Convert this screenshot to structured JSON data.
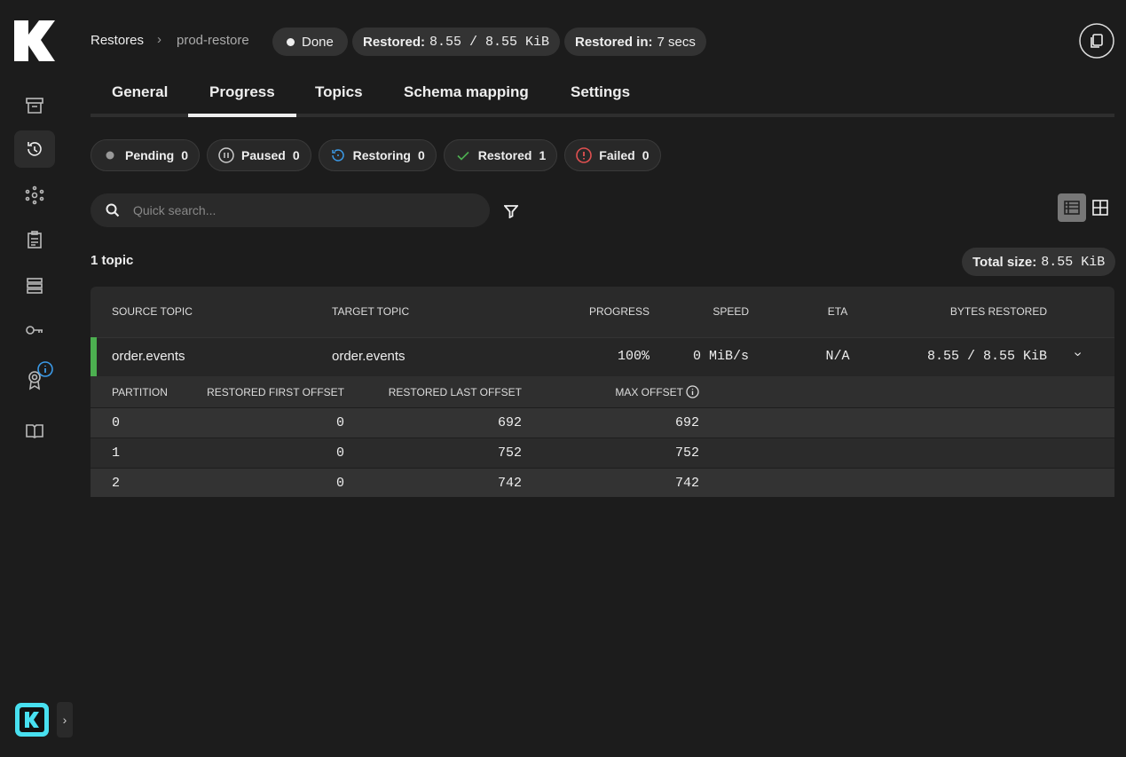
{
  "breadcrumb": {
    "parent": "Restores",
    "current": "prod-restore"
  },
  "status": {
    "state": "Done",
    "restored_label": "Restored:",
    "restored_value": "8.55 / 8.55 KiB",
    "time_label": "Restored in:",
    "time_value": "7 secs"
  },
  "tabs": [
    "General",
    "Progress",
    "Topics",
    "Schema mapping",
    "Settings"
  ],
  "active_tab": 1,
  "filters": [
    {
      "label": "Pending",
      "count": 0
    },
    {
      "label": "Paused",
      "count": 0
    },
    {
      "label": "Restoring",
      "count": 0
    },
    {
      "label": "Restored",
      "count": 1
    },
    {
      "label": "Failed",
      "count": 0
    }
  ],
  "search_placeholder": "Quick search...",
  "topic_count": "1 topic",
  "total_size": {
    "label": "Total size:",
    "value": "8.55 KiB"
  },
  "table": {
    "columns": [
      "SOURCE TOPIC",
      "TARGET TOPIC",
      "PROGRESS",
      "SPEED",
      "ETA",
      "BYTES RESTORED"
    ],
    "rows": [
      [
        "order.events",
        "order.events",
        "100%",
        "0 MiB/s",
        "N/A",
        "8.55 / 8.55 KiB"
      ]
    ]
  },
  "partitions": {
    "columns": [
      "PARTITION",
      "RESTORED FIRST OFFSET",
      "RESTORED LAST OFFSET",
      "MAX OFFSET"
    ],
    "rows": [
      [
        0,
        0,
        692,
        692
      ],
      [
        1,
        0,
        752,
        752
      ],
      [
        2,
        0,
        742,
        742
      ]
    ]
  }
}
